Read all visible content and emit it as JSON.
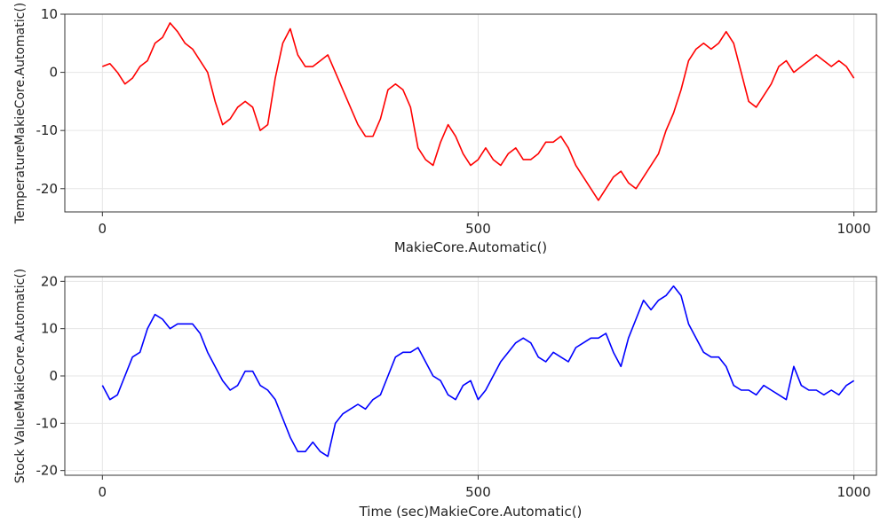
{
  "chart_data": [
    {
      "type": "line",
      "xlabel": "MakieCore.Automatic()",
      "ylabel": "TemperatureMakieCore.Automatic()",
      "xlim": [
        -50,
        1030
      ],
      "ylim": [
        -24,
        10
      ],
      "xticks": [
        0,
        500,
        1000
      ],
      "yticks": [
        10,
        0,
        -10,
        -20
      ],
      "grid": true,
      "legend": "none",
      "series": [
        {
          "color": "#ff0000",
          "x": [
            0,
            10,
            20,
            30,
            40,
            50,
            60,
            70,
            80,
            90,
            100,
            110,
            120,
            130,
            140,
            150,
            160,
            170,
            180,
            190,
            200,
            210,
            220,
            230,
            240,
            250,
            260,
            270,
            280,
            290,
            300,
            310,
            320,
            330,
            340,
            350,
            360,
            370,
            380,
            390,
            400,
            410,
            420,
            430,
            440,
            450,
            460,
            470,
            480,
            490,
            500,
            510,
            520,
            530,
            540,
            550,
            560,
            570,
            580,
            590,
            600,
            610,
            620,
            630,
            640,
            650,
            660,
            670,
            680,
            690,
            700,
            710,
            720,
            730,
            740,
            750,
            760,
            770,
            780,
            790,
            800,
            810,
            820,
            830,
            840,
            850,
            860,
            870,
            880,
            890,
            900,
            910,
            920,
            930,
            940,
            950,
            960,
            970,
            980,
            990,
            1000
          ],
          "values": [
            1,
            1.5,
            0,
            -2,
            -1,
            1,
            2,
            5,
            6,
            8.5,
            7,
            5,
            4,
            2,
            0,
            -5,
            -9,
            -8,
            -6,
            -5,
            -6,
            -10,
            -9,
            -1,
            5,
            7.5,
            3,
            1,
            1,
            2,
            3,
            0,
            -3,
            -6,
            -9,
            -11,
            -11,
            -8,
            -3,
            -2,
            -3,
            -6,
            -13,
            -15,
            -16,
            -12,
            -9,
            -11,
            -14,
            -16,
            -15,
            -13,
            -15,
            -16,
            -14,
            -13,
            -15,
            -15,
            -14,
            -12,
            -12,
            -11,
            -13,
            -16,
            -18,
            -20,
            -22,
            -20,
            -18,
            -17,
            -19,
            -20,
            -18,
            -16,
            -14,
            -10,
            -7,
            -3,
            2,
            4,
            5,
            4,
            5,
            7,
            5,
            0,
            -5,
            -6,
            -4,
            -2,
            1,
            2,
            0,
            1,
            2,
            3,
            2,
            1,
            2,
            1,
            -1
          ]
        }
      ]
    },
    {
      "type": "line",
      "xlabel": "Time (sec)MakieCore.Automatic()",
      "ylabel": "Stock ValueMakieCore.Automatic()",
      "xlim": [
        -50,
        1030
      ],
      "ylim": [
        -21,
        21
      ],
      "xticks": [
        0,
        500,
        1000
      ],
      "yticks": [
        20,
        10,
        0,
        -10,
        -20
      ],
      "grid": true,
      "legend": "none",
      "series": [
        {
          "color": "#0000ff",
          "x": [
            0,
            10,
            20,
            30,
            40,
            50,
            60,
            70,
            80,
            90,
            100,
            110,
            120,
            130,
            140,
            150,
            160,
            170,
            180,
            190,
            200,
            210,
            220,
            230,
            240,
            250,
            260,
            270,
            280,
            290,
            300,
            310,
            320,
            330,
            340,
            350,
            360,
            370,
            380,
            390,
            400,
            410,
            420,
            430,
            440,
            450,
            460,
            470,
            480,
            490,
            500,
            510,
            520,
            530,
            540,
            550,
            560,
            570,
            580,
            590,
            600,
            610,
            620,
            630,
            640,
            650,
            660,
            670,
            680,
            690,
            700,
            710,
            720,
            730,
            740,
            750,
            760,
            770,
            780,
            790,
            800,
            810,
            820,
            830,
            840,
            850,
            860,
            870,
            880,
            890,
            900,
            910,
            920,
            930,
            940,
            950,
            960,
            970,
            980,
            990,
            1000
          ],
          "values": [
            -2,
            -5,
            -4,
            0,
            4,
            5,
            10,
            13,
            12,
            10,
            11,
            11,
            11,
            9,
            5,
            2,
            -1,
            -3,
            -2,
            1,
            1,
            -2,
            -3,
            -5,
            -9,
            -13,
            -16,
            -16,
            -14,
            -16,
            -17,
            -10,
            -8,
            -7,
            -6,
            -7,
            -5,
            -4,
            0,
            4,
            5,
            5,
            6,
            3,
            0,
            -1,
            -4,
            -5,
            -2,
            -1,
            -5,
            -3,
            0,
            3,
            5,
            7,
            8,
            7,
            4,
            3,
            5,
            4,
            3,
            6,
            7,
            8,
            8,
            9,
            5,
            2,
            8,
            12,
            16,
            14,
            16,
            17,
            19,
            17,
            11,
            8,
            5,
            4,
            4,
            2,
            -2,
            -3,
            -3,
            -4,
            -2,
            -3,
            -4,
            -5,
            2,
            -2,
            -3,
            -3,
            -4,
            -3,
            -4,
            -2,
            -1
          ]
        }
      ]
    }
  ]
}
